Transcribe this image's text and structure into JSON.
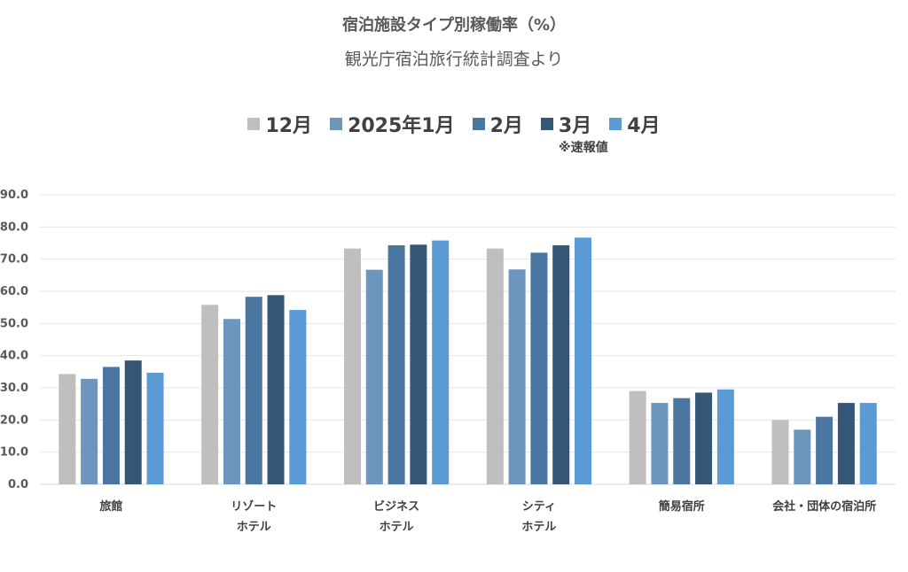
{
  "header": {
    "title": "宿泊施設タイプ別稼働率（%）",
    "subtitle": "観光庁宿泊旅行統計調査より"
  },
  "note": "※速報値",
  "chart_data": {
    "type": "bar",
    "title": "宿泊施設タイプ別稼働率（%）",
    "subtitle": "観光庁宿泊旅行統計調査より",
    "categories": [
      [
        "旅館"
      ],
      [
        "リゾート",
        "ホテル"
      ],
      [
        "ビジネス",
        "ホテル"
      ],
      [
        "シティ",
        "ホテル"
      ],
      [
        "簡易宿所"
      ],
      [
        "会社・団体の宿泊所"
      ]
    ],
    "series": [
      {
        "name": "12月",
        "color": "#BFBFBF",
        "values": [
          34.3,
          55.8,
          73.3,
          73.3,
          29.0,
          20.0
        ]
      },
      {
        "name": "2025年1月",
        "color": "#6C96BE",
        "values": [
          32.8,
          51.4,
          66.7,
          66.8,
          25.3,
          17.0
        ]
      },
      {
        "name": "2月",
        "color": "#4A76A1",
        "values": [
          36.5,
          58.3,
          74.3,
          72.0,
          26.8,
          21.0
        ]
      },
      {
        "name": "3月",
        "color": "#345677",
        "values": [
          38.5,
          58.8,
          74.5,
          74.3,
          28.5,
          25.3
        ]
      },
      {
        "name": "4月",
        "color": "#5B9BD5",
        "values": [
          34.7,
          54.2,
          75.8,
          76.7,
          29.5,
          25.3
        ]
      }
    ],
    "yticks": [
      "0.0",
      "10.0",
      "20.0",
      "30.0",
      "40.0",
      "50.0",
      "60.0",
      "70.0",
      "80.0",
      "90.0"
    ],
    "ylim": [
      0,
      90
    ],
    "grid": true,
    "legend_position": "top"
  }
}
